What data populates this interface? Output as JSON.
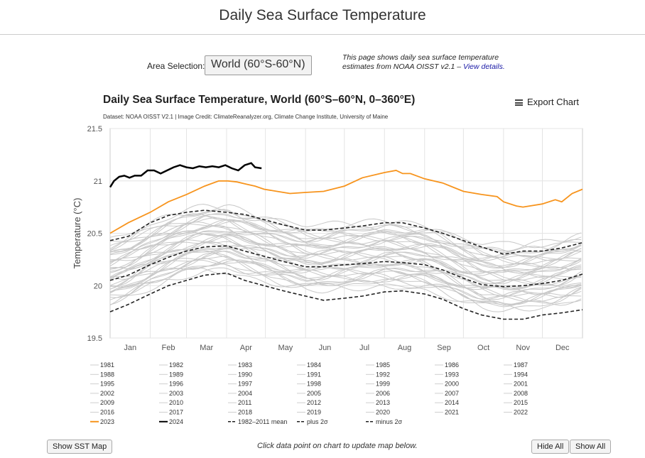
{
  "page": {
    "title": "Daily Sea Surface Temperature",
    "area_label": "Area Selection:",
    "area_value": "World (60°S-60°N)",
    "info_text": "This page shows daily sea surface temperature estimates from NOAA OISST v2.1 –",
    "info_link": "View details.",
    "hint": "Click data point on chart to update map below.",
    "show_map_label": "Show SST Map",
    "hide_all_label": "Hide All",
    "show_all_label": "Show All"
  },
  "chart_data": {
    "type": "line",
    "title": "Daily Sea Surface Temperature, World (60°S–60°N, 0–360°E)",
    "subtitle": "Dataset: NOAA OISST V2.1 | Image Credit: ClimateReanalyzer.org, Climate Change Institute, University of Maine",
    "export_label": "Export Chart",
    "ylabel": "Temperature (°C)",
    "xlabel": "",
    "ylim": [
      19.5,
      21.5
    ],
    "yticks": [
      19.5,
      20,
      20.5,
      21,
      21.5
    ],
    "ytick_labels": [
      "19.5",
      "20",
      "20.5",
      "21",
      "21.5"
    ],
    "x_unit": "day of year",
    "xlim": [
      1,
      366
    ],
    "months": [
      "Jan",
      "Feb",
      "Mar",
      "Apr",
      "May",
      "Jun",
      "Jul",
      "Aug",
      "Sep",
      "Oct",
      "Nov",
      "Dec"
    ],
    "grid": true,
    "legend_position": "bottom",
    "legend": {
      "years": [
        "1981",
        "1982",
        "1983",
        "1984",
        "1985",
        "1986",
        "1987",
        "1988",
        "1989",
        "1990",
        "1991",
        "1992",
        "1993",
        "1994",
        "1995",
        "1996",
        "1997",
        "1998",
        "1999",
        "2000",
        "2001",
        "2002",
        "2003",
        "2004",
        "2005",
        "2006",
        "2007",
        "2008",
        "2009",
        "2010",
        "2011",
        "2012",
        "2013",
        "2014",
        "2015",
        "2016",
        "2017",
        "2018",
        "2019",
        "2020",
        "2021",
        "2022"
      ],
      "mean_label": "1982–2011 mean",
      "plus_label": "plus 2σ",
      "minus_label": "minus 2σ"
    },
    "colors": {
      "historical": "#c8c8c8",
      "y2023": "#f7941d",
      "y2024": "#000000",
      "stats": "#222222",
      "grid": "#e4e4e4",
      "frame": "#cccccc"
    },
    "series": [
      {
        "name": "2023",
        "x": [
          1,
          15,
          32,
          46,
          60,
          74,
          85,
          92,
          99,
          106,
          113,
          120,
          130,
          140,
          152,
          166,
          182,
          196,
          213,
          222,
          227,
          233,
          244,
          258,
          274,
          288,
          300,
          305,
          315,
          320,
          335,
          345,
          350,
          358,
          366
        ],
        "y": [
          20.5,
          20.6,
          20.7,
          20.8,
          20.87,
          20.95,
          21.0,
          21.0,
          20.99,
          20.97,
          20.95,
          20.92,
          20.9,
          20.88,
          20.89,
          20.9,
          20.95,
          21.03,
          21.08,
          21.1,
          21.07,
          21.07,
          21.02,
          20.98,
          20.9,
          20.87,
          20.85,
          20.8,
          20.76,
          20.75,
          20.78,
          20.82,
          20.8,
          20.88,
          20.92
        ]
      },
      {
        "name": "2024",
        "x": [
          1,
          4,
          8,
          12,
          16,
          20,
          25,
          30,
          35,
          40,
          45,
          50,
          55,
          60,
          65,
          70,
          75,
          80,
          85,
          90,
          95,
          100,
          105,
          110,
          113,
          118
        ],
        "y": [
          20.94,
          21.0,
          21.04,
          21.05,
          21.03,
          21.05,
          21.05,
          21.1,
          21.1,
          21.07,
          21.1,
          21.13,
          21.15,
          21.13,
          21.12,
          21.14,
          21.13,
          21.14,
          21.13,
          21.15,
          21.12,
          21.1,
          21.15,
          21.17,
          21.13,
          21.12
        ]
      },
      {
        "name": "1982–2011 mean",
        "x": [
          1,
          15,
          32,
          46,
          60,
          74,
          91,
          105,
          120,
          135,
          152,
          166,
          182,
          196,
          213,
          227,
          244,
          258,
          274,
          288,
          305,
          320,
          335,
          350,
          366
        ],
        "y": [
          20.05,
          20.1,
          20.2,
          20.27,
          20.33,
          20.37,
          20.38,
          20.33,
          20.28,
          20.23,
          20.18,
          20.18,
          20.2,
          20.21,
          20.23,
          20.22,
          20.2,
          20.15,
          20.07,
          20.01,
          19.99,
          20.0,
          20.02,
          20.05,
          20.11
        ]
      },
      {
        "name": "plus 2σ",
        "x": [
          1,
          15,
          32,
          46,
          60,
          74,
          91,
          105,
          120,
          135,
          152,
          166,
          182,
          196,
          213,
          227,
          244,
          258,
          274,
          288,
          305,
          320,
          335,
          350,
          366
        ],
        "y": [
          20.43,
          20.47,
          20.6,
          20.67,
          20.7,
          20.72,
          20.7,
          20.68,
          20.63,
          20.58,
          20.53,
          20.53,
          20.55,
          20.57,
          20.6,
          20.6,
          20.55,
          20.5,
          20.43,
          20.37,
          20.3,
          20.33,
          20.33,
          20.36,
          20.41
        ]
      },
      {
        "name": "minus 2σ",
        "x": [
          1,
          15,
          32,
          46,
          60,
          74,
          91,
          105,
          120,
          135,
          152,
          166,
          182,
          196,
          213,
          227,
          244,
          258,
          274,
          288,
          305,
          320,
          335,
          350,
          366
        ],
        "y": [
          19.75,
          19.82,
          19.92,
          20.0,
          20.05,
          20.1,
          20.12,
          20.05,
          20.0,
          19.95,
          19.9,
          19.86,
          19.88,
          19.9,
          19.94,
          19.95,
          19.92,
          19.87,
          19.78,
          19.72,
          19.68,
          19.68,
          19.72,
          19.74,
          19.77
        ]
      }
    ]
  }
}
